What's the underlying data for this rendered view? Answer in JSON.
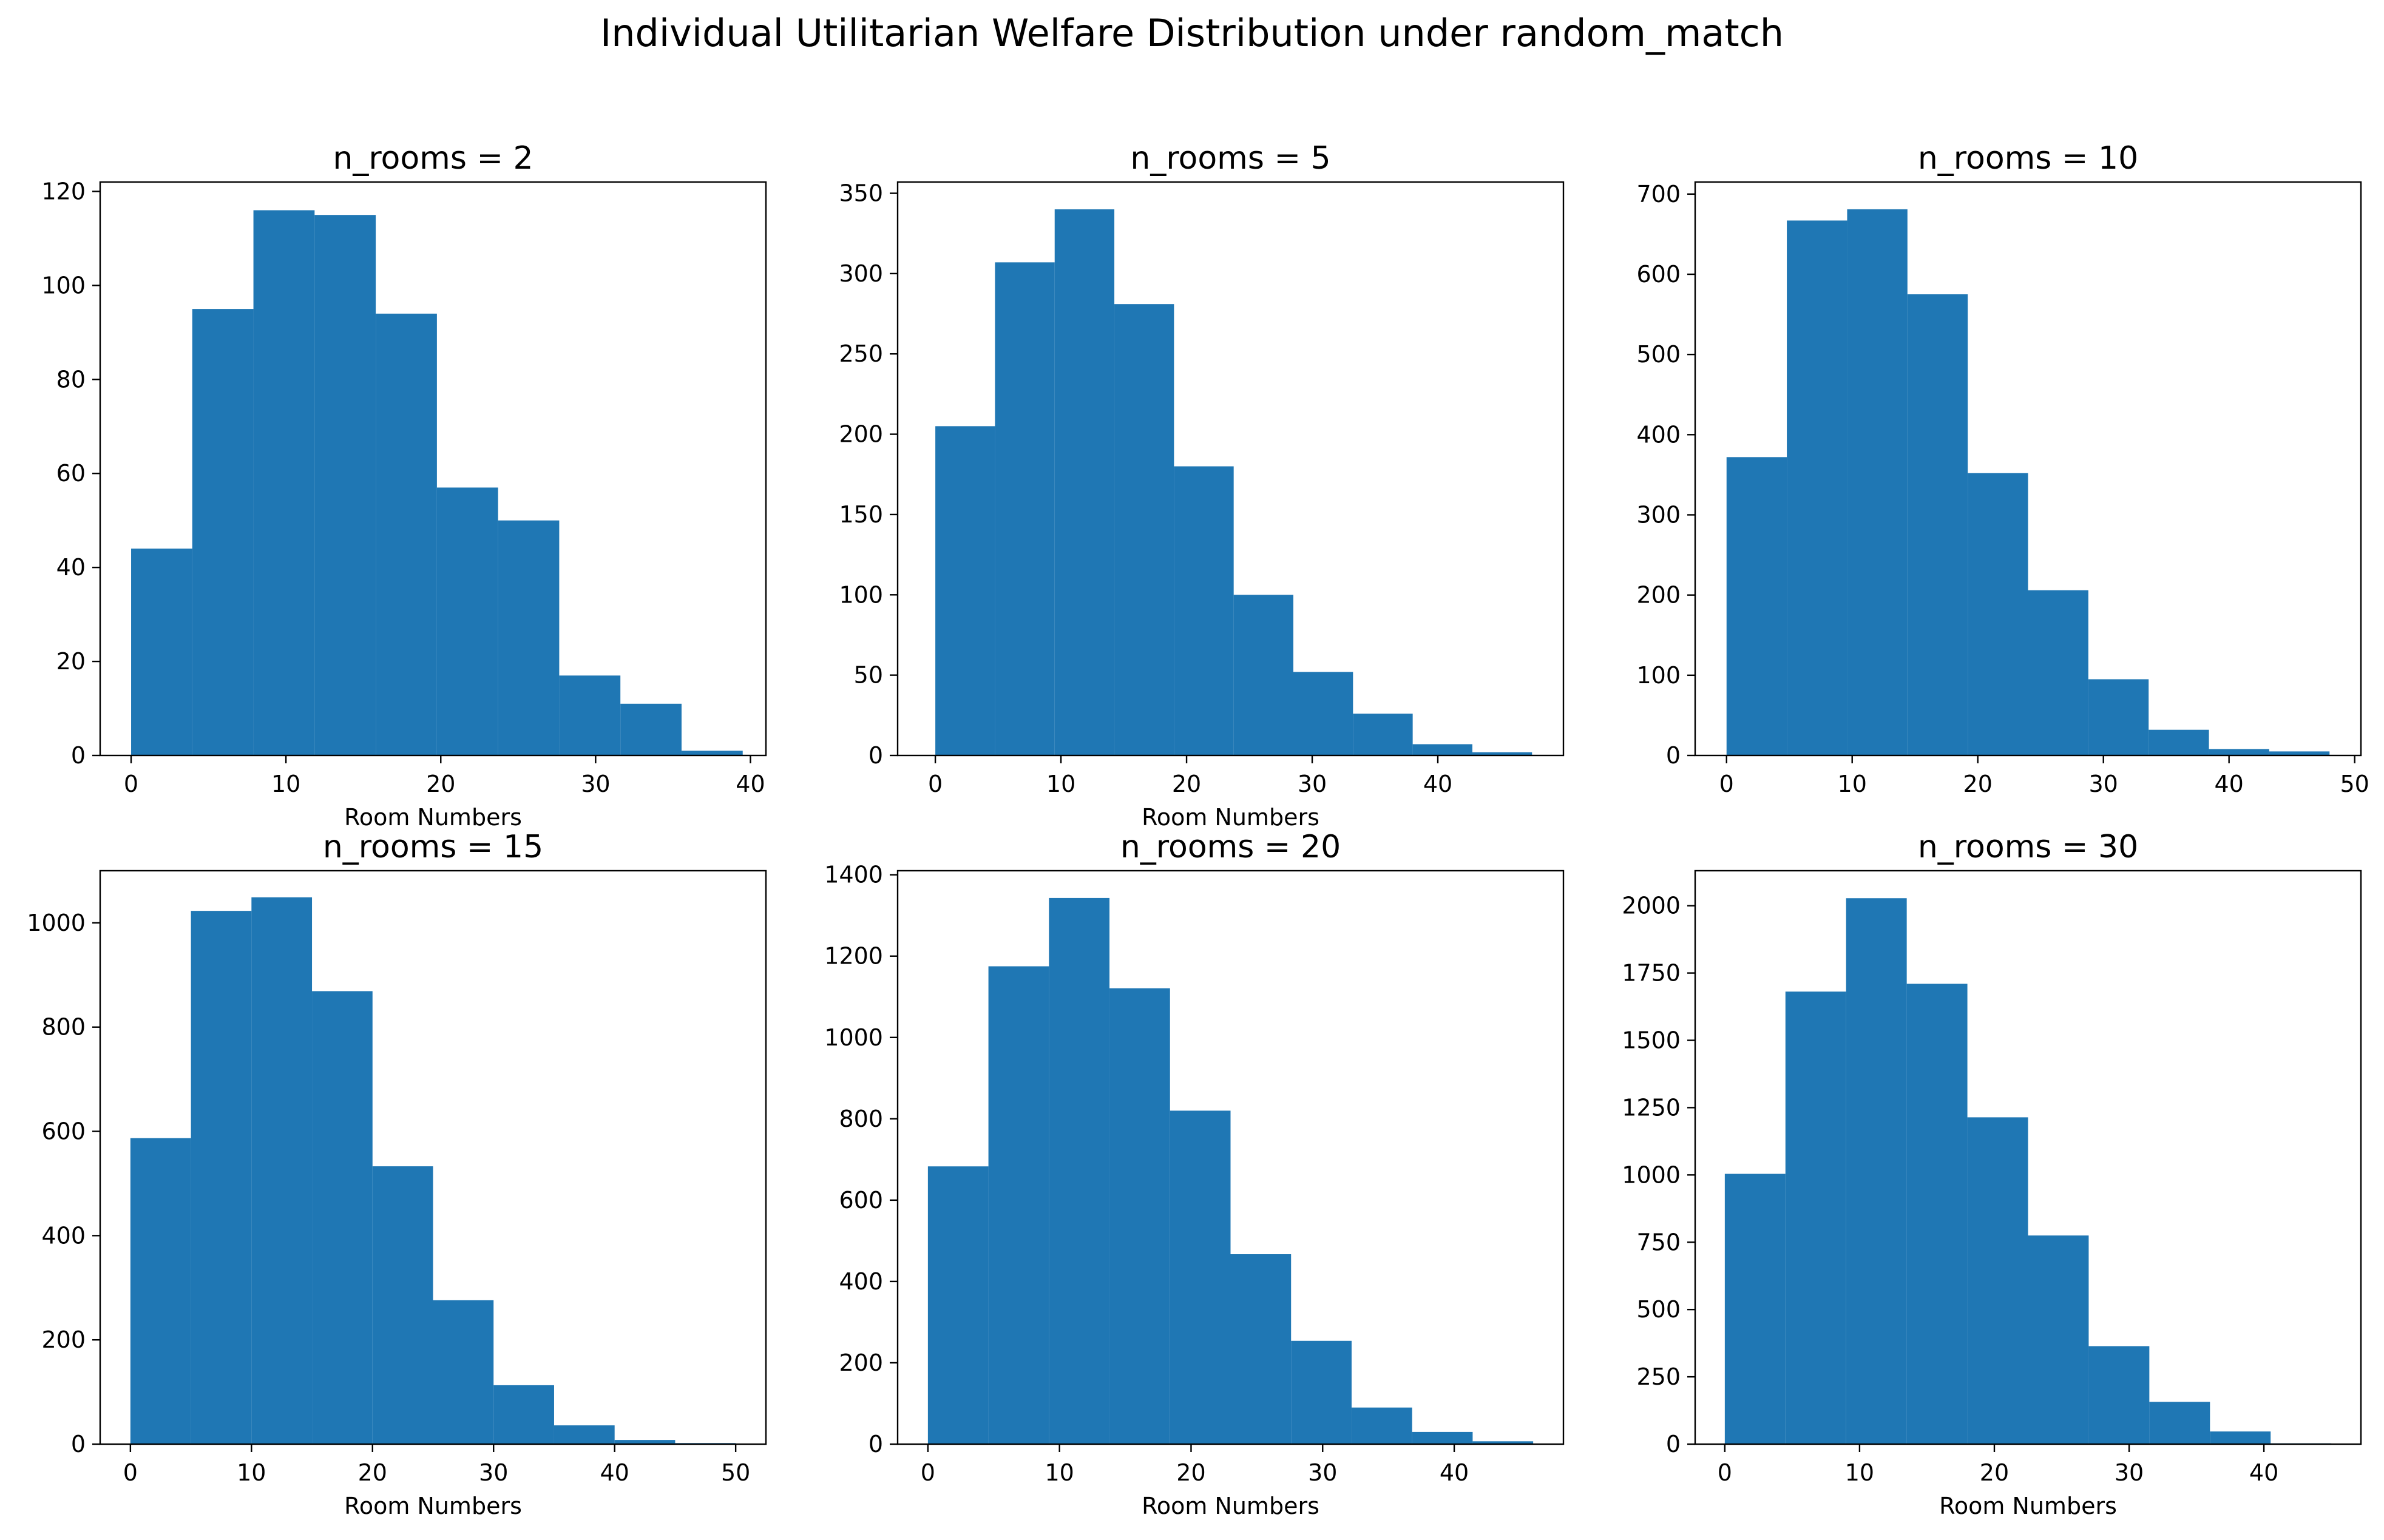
{
  "title": "Individual Utilitarian Welfare Distribution under random_match",
  "bar_color": "#1f77b4",
  "chart_data": [
    {
      "type": "bar",
      "title": "n_rooms = 2",
      "xlabel": "Room Numbers",
      "ylabel": "",
      "bin_edges": [
        0,
        3.95,
        7.9,
        11.85,
        15.8,
        19.75,
        23.7,
        27.65,
        31.6,
        35.55,
        39.5
      ],
      "values": [
        44,
        95,
        116,
        115,
        94,
        57,
        50,
        17,
        11,
        1
      ],
      "xlim": [
        -2,
        41
      ],
      "ylim": [
        0,
        122
      ],
      "xticks": [
        0,
        10,
        20,
        30,
        40
      ],
      "yticks": [
        0,
        20,
        40,
        60,
        80,
        100,
        120
      ],
      "grid": false
    },
    {
      "type": "bar",
      "title": "n_rooms = 5",
      "xlabel": "Room Numbers",
      "ylabel": "",
      "bin_edges": [
        0,
        4.75,
        9.5,
        14.25,
        19,
        23.75,
        28.5,
        33.25,
        38,
        42.75,
        47.5
      ],
      "values": [
        205,
        307,
        340,
        281,
        180,
        100,
        52,
        26,
        7,
        2
      ],
      "xlim": [
        -3,
        50
      ],
      "ylim": [
        0,
        357
      ],
      "xticks": [
        0,
        10,
        20,
        30,
        40
      ],
      "yticks": [
        0,
        50,
        100,
        150,
        200,
        250,
        300,
        350
      ],
      "grid": false
    },
    {
      "type": "bar",
      "title": "n_rooms = 10",
      "xlabel": "",
      "ylabel": "",
      "bin_edges": [
        0,
        4.8,
        9.6,
        14.4,
        19.2,
        24,
        28.8,
        33.6,
        38.4,
        43.2,
        48
      ],
      "values": [
        372,
        667,
        681,
        575,
        352,
        206,
        95,
        32,
        8,
        5
      ],
      "xlim": [
        -2.5,
        50.5
      ],
      "ylim": [
        0,
        715
      ],
      "xticks": [
        0,
        10,
        20,
        30,
        40,
        50
      ],
      "yticks": [
        0,
        100,
        200,
        300,
        400,
        500,
        600,
        700
      ],
      "grid": false
    },
    {
      "type": "bar",
      "title": "n_rooms = 15",
      "xlabel": "Room Numbers",
      "ylabel": "",
      "bin_edges": [
        0,
        5,
        10,
        15,
        20,
        25,
        30,
        35,
        40,
        45,
        50
      ],
      "values": [
        587,
        1023,
        1049,
        869,
        533,
        276,
        113,
        36,
        8,
        2
      ],
      "xlim": [
        -2.5,
        52.5
      ],
      "ylim": [
        0,
        1100
      ],
      "xticks": [
        0,
        10,
        20,
        30,
        40,
        50
      ],
      "yticks": [
        0,
        200,
        400,
        600,
        800,
        1000
      ],
      "grid": false
    },
    {
      "type": "bar",
      "title": "n_rooms = 20",
      "xlabel": "Room Numbers",
      "ylabel": "",
      "bin_edges": [
        0,
        4.6,
        9.2,
        13.8,
        18.4,
        23,
        27.6,
        32.2,
        36.8,
        41.4,
        46
      ],
      "values": [
        683,
        1175,
        1343,
        1121,
        820,
        467,
        254,
        90,
        30,
        7
      ],
      "xlim": [
        -2.3,
        48.3
      ],
      "ylim": [
        0,
        1410
      ],
      "xticks": [
        0,
        10,
        20,
        30,
        40
      ],
      "yticks": [
        0,
        200,
        400,
        600,
        800,
        1000,
        1200,
        1400
      ],
      "grid": false
    },
    {
      "type": "bar",
      "title": "n_rooms = 30",
      "xlabel": "Room Numbers",
      "ylabel": "",
      "bin_edges": [
        0,
        4.5,
        9,
        13.5,
        18,
        22.5,
        27,
        31.5,
        36,
        40.5,
        45
      ],
      "values": [
        1004,
        1681,
        2028,
        1710,
        1214,
        775,
        364,
        157,
        47,
        3
      ],
      "xlim": [
        -2.2,
        47.2
      ],
      "ylim": [
        0,
        2130
      ],
      "xticks": [
        0,
        10,
        20,
        30,
        40
      ],
      "yticks": [
        0,
        250,
        500,
        750,
        1000,
        1250,
        1500,
        1750,
        2000
      ],
      "grid": false
    }
  ]
}
